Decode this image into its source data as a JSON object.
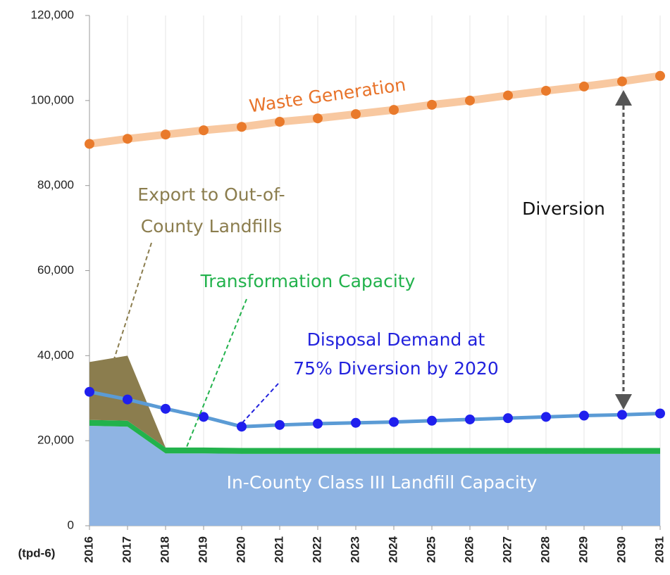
{
  "chart_data": {
    "type": "line",
    "x_axis_label": "(tpd-6)",
    "x": [
      2016,
      2017,
      2018,
      2019,
      2020,
      2021,
      2022,
      2023,
      2024,
      2025,
      2026,
      2027,
      2028,
      2029,
      2030,
      2031
    ],
    "xlim": [
      2016,
      2031
    ],
    "xticks": [
      2016,
      2017,
      2018,
      2019,
      2020,
      2021,
      2022,
      2023,
      2024,
      2025,
      2026,
      2027,
      2028,
      2029,
      2030,
      2031
    ],
    "ylim": [
      0,
      120000
    ],
    "yticks": [
      0,
      {
        "value": 20000,
        "label": "20,000"
      },
      {
        "value": 40000,
        "label": "40,000"
      },
      {
        "value": 60000,
        "label": "60,000"
      },
      {
        "value": 80000,
        "label": "80,000"
      },
      {
        "value": 100000,
        "label": "100,000"
      },
      {
        "value": 120000,
        "label": "120,000"
      }
    ],
    "grid": true,
    "areas": [
      {
        "name": "In-County Class III Landfill Capacity",
        "color": "#8fb4e3",
        "values": [
          23500,
          23300,
          17000,
          17000,
          16900,
          16900,
          16900,
          16900,
          16900,
          16900,
          16900,
          16900,
          16900,
          16900,
          16900,
          16900
        ]
      },
      {
        "name": "Transformation Capacity",
        "color": "#22b24c",
        "values": [
          1400,
          1400,
          1400,
          1400,
          1400,
          1400,
          1400,
          1400,
          1400,
          1400,
          1400,
          1400,
          1400,
          1400,
          1400,
          1400
        ]
      },
      {
        "name": "Export to Out-of-County Landfills",
        "color": "#8b7d4e",
        "values": [
          13600,
          15300,
          0,
          0,
          0,
          0,
          0,
          0,
          0,
          0,
          0,
          0,
          0,
          0,
          0,
          0
        ]
      }
    ],
    "series": [
      {
        "name": "Waste Generation",
        "color": "#e97a2b",
        "line_color": "#f8c8a0",
        "values": [
          89800,
          91000,
          92000,
          93000,
          93800,
          95000,
          95800,
          96800,
          97800,
          99000,
          100000,
          101200,
          102300,
          103300,
          104500,
          105800
        ]
      },
      {
        "name": "Disposal Demand at 75% Diversion by 2020",
        "color": "#1f1fee",
        "line_color": "#5b9bd5",
        "values": [
          31500,
          29700,
          27500,
          25600,
          23300,
          23700,
          24000,
          24200,
          24400,
          24700,
          25000,
          25300,
          25600,
          25900,
          26100,
          26400
        ]
      }
    ],
    "annotations": {
      "waste": "Waste Generation",
      "export": [
        "Export to Out-of-",
        "County Landfills"
      ],
      "transformation": "Transformation Capacity",
      "disposal": [
        "Disposal Demand at",
        "75% Diversion by 2020"
      ],
      "landfill": "In-County Class III Landfill Capacity",
      "diversion": "Diversion"
    }
  }
}
